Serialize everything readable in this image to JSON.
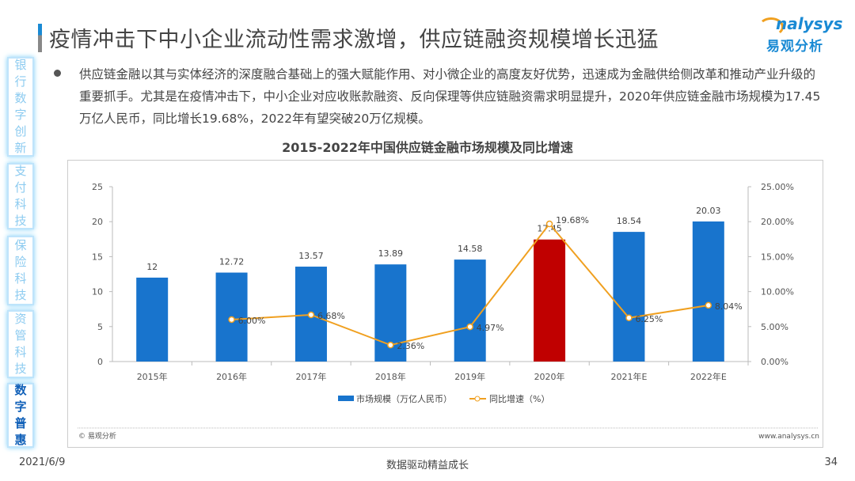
{
  "header": {
    "title": "疫情冲击下中小企业流动性需求激增，供应链融资规模增长迅猛"
  },
  "logo": {
    "en": "nalysys",
    "cn": "易观分析"
  },
  "sidebar": {
    "items": [
      {
        "label": "银行数字创新",
        "active": false
      },
      {
        "label": "支付科技",
        "active": false
      },
      {
        "label": "保险科技",
        "active": false
      },
      {
        "label": "资管科技",
        "active": false
      },
      {
        "label": "数字普惠",
        "active": true
      }
    ]
  },
  "body": {
    "paragraph": "供应链金融以其与实体经济的深度融合基础上的强大赋能作用、对小微企业的高度友好优势，迅速成为金融供给侧改革和推动产业升级的重要抓手。尤其是在疫情冲击下，中小企业对应收账款融资、反向保理等供应链融资需求明显提升，2020年供应链金融市场规模为17.45万亿人民币，同比增长19.68%，2022年有望突破20万亿规模。"
  },
  "chart_data": {
    "type": "bar",
    "title": "2015-2022年中国供应链金融市场规模及同比增速",
    "categories": [
      "2015年",
      "2016年",
      "2017年",
      "2018年",
      "2019年",
      "2020年",
      "2021年E",
      "2022年E"
    ],
    "series": [
      {
        "name": "市场规模（万亿人民币）",
        "type": "bar",
        "axis": "left",
        "values": [
          12,
          12.72,
          13.57,
          13.89,
          14.58,
          17.45,
          18.54,
          20.03
        ],
        "labels": [
          "12",
          "12.72",
          "13.57",
          "13.89",
          "14.58",
          "17.45",
          "18.54",
          "20.03"
        ],
        "color": "#1874cd",
        "highlight_index": 5,
        "highlight_color": "#c00000"
      },
      {
        "name": "同比增速（%）",
        "type": "line",
        "axis": "right",
        "values": [
          null,
          6.0,
          6.68,
          2.36,
          4.97,
          19.68,
          6.25,
          8.04
        ],
        "labels": [
          null,
          "6.00%",
          "6.68%",
          "2.36%",
          "4.97%",
          "19.68%",
          "6.25%",
          "8.04%"
        ],
        "color": "#f0a020"
      }
    ],
    "ylim": [
      0,
      25
    ],
    "yticks": [
      "0",
      "5",
      "10",
      "15",
      "20",
      "25"
    ],
    "y2lim": [
      0,
      25
    ],
    "y2ticks": [
      "0.00%",
      "5.00%",
      "10.00%",
      "15.00%",
      "20.00%",
      "25.00%"
    ],
    "grid": false,
    "legend": "bottom",
    "source": "© 易观分析",
    "website": "www.analysys.cn"
  },
  "footer": {
    "date": "2021/6/9",
    "slogan": "数据驱动精益成长",
    "page": "34"
  }
}
